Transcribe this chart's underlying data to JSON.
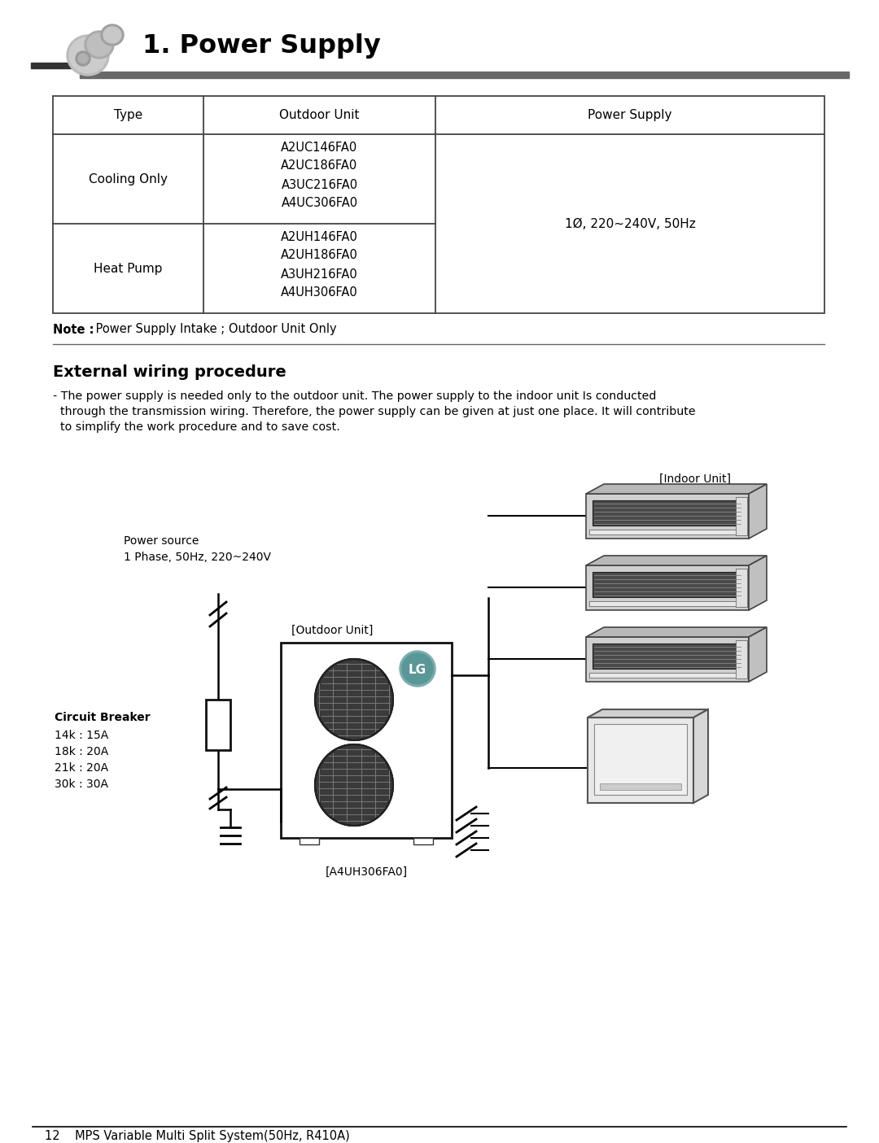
{
  "title": "1. Power Supply",
  "page_bg": "#ffffff",
  "section2_title": "External wiring procedure",
  "section2_body_lines": [
    "- The power supply is needed only to the outdoor unit. The power supply to the indoor unit Is conducted",
    "  through the transmission wiring. Therefore, the power supply can be given at just one place. It will contribute",
    "  to simplify the work procedure and to save cost."
  ],
  "table_headers": [
    "Type",
    "Outdoor Unit",
    "Power Supply"
  ],
  "table_row1_col1": "Cooling Only",
  "table_row1_col2": [
    "A2UC146FA0",
    "A2UC186FA0",
    "A3UC216FA0",
    "A4UC306FA0"
  ],
  "table_row2_col1": "Heat Pump",
  "table_row2_col2": [
    "A2UH146FA0",
    "A2UH186FA0",
    "A3UH216FA0",
    "A4UH306FA0"
  ],
  "table_col3_merged": "1Ø, 220~240V, 50Hz",
  "note_bold": "Note :",
  "note_regular": " Power Supply Intake ; Outdoor Unit Only",
  "footer_text": "12    MPS Variable Multi Split System(50Hz, R410A)",
  "power_source_line1": "Power source",
  "power_source_line2": "1 Phase, 50Hz, 220~240V",
  "outdoor_unit_label": "[Outdoor Unit]",
  "model_label": "[A4UH306FA0]",
  "indoor_unit_label": "[Indoor Unit]",
  "cb_line1": "Circuit Breaker",
  "cb_line2": "14k : 15A",
  "cb_line3": "18k : 20A",
  "cb_line4": "21k : 20A",
  "cb_line5": "30k : 30A",
  "lg_text": "LG"
}
